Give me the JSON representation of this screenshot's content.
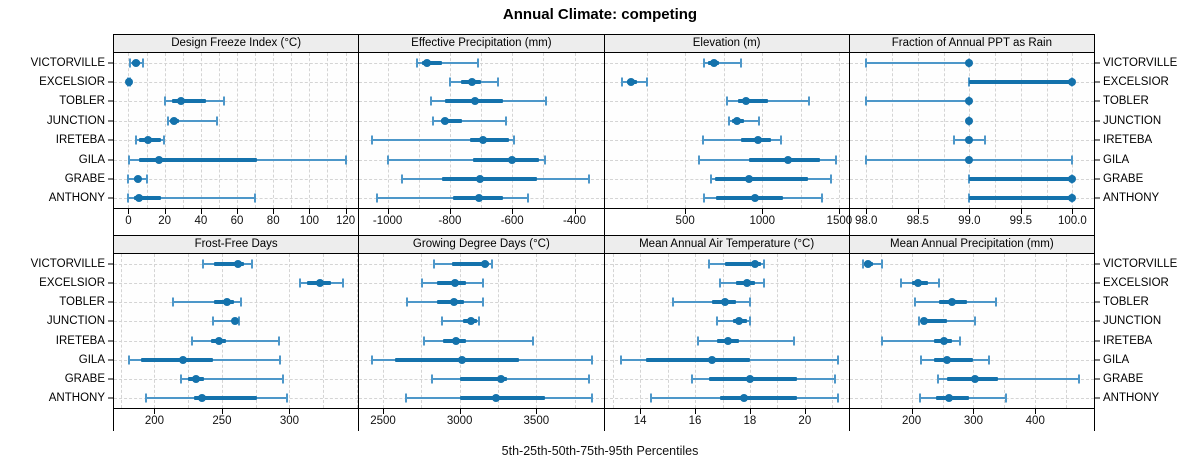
{
  "title": "Annual Climate: competing",
  "caption": "5th-25th-50th-75th-95th Percentiles",
  "sites": [
    "VICTORVILLE",
    "EXCELSIOR",
    "TOBLER",
    "JUNCTION",
    "IRETEBA",
    "GILA",
    "GRABE",
    "ANTHONY"
  ],
  "colors": {
    "median_dot": "#1472ac",
    "iqr_bar": "#1472ac",
    "whisker": "#4d97c9",
    "grid": "#d4d4d4",
    "strip_bg": "#ededed",
    "border": "#000000"
  },
  "percentile_levels": [
    5,
    25,
    50,
    75,
    95
  ],
  "chart_data": [
    {
      "type": "dotplot-percentiles",
      "title": "Design Freeze Index (°C)",
      "xlim": [
        -8,
        127
      ],
      "grid": [
        0,
        10,
        20,
        30,
        40,
        50,
        60,
        70,
        80,
        90,
        100,
        110,
        120
      ],
      "ticks": [
        {
          "v": 0,
          "label": "0"
        },
        {
          "v": 20,
          "label": "20"
        },
        {
          "v": 40,
          "label": "40"
        },
        {
          "v": 60,
          "label": "60"
        },
        {
          "v": 80,
          "label": "80"
        },
        {
          "v": 100,
          "label": "100"
        },
        {
          "v": 120,
          "label": "120"
        }
      ],
      "series": [
        {
          "name": "VICTORVILLE",
          "p": [
            1,
            2,
            4,
            6.5,
            8
          ]
        },
        {
          "name": "EXCELSIOR",
          "p": [
            0,
            0,
            0.3,
            0.6,
            1
          ]
        },
        {
          "name": "TOBLER",
          "p": [
            20,
            24,
            29,
            43,
            53
          ]
        },
        {
          "name": "JUNCTION",
          "p": [
            22,
            23,
            25,
            28,
            49
          ]
        },
        {
          "name": "IRETEBA",
          "p": [
            4,
            6,
            11,
            18,
            19.5
          ]
        },
        {
          "name": "GILA",
          "p": [
            0.5,
            6,
            17,
            71,
            120
          ]
        },
        {
          "name": "GRABE",
          "p": [
            0,
            3,
            5,
            7,
            10
          ]
        },
        {
          "name": "ANTHONY",
          "p": [
            0,
            3,
            6,
            18,
            70
          ]
        }
      ]
    },
    {
      "type": "dotplot-percentiles",
      "title": "Effective Precipitation (mm)",
      "xlim": [
        -1091,
        -307
      ],
      "grid": [
        -1000,
        -900,
        -800,
        -700,
        -600,
        -500,
        -400
      ],
      "ticks": [
        {
          "v": -1000,
          "label": "-1000"
        },
        {
          "v": -800,
          "label": "-800"
        },
        {
          "v": -600,
          "label": "-600"
        },
        {
          "v": -400,
          "label": "-400"
        }
      ],
      "series": [
        {
          "name": "VICTORVILLE",
          "p": [
            -905,
            -890,
            -875,
            -825,
            -710
          ]
        },
        {
          "name": "EXCELSIOR",
          "p": [
            -800,
            -765,
            -730,
            -700,
            -645
          ]
        },
        {
          "name": "TOBLER",
          "p": [
            -860,
            -815,
            -720,
            -630,
            -490
          ]
        },
        {
          "name": "JUNCTION",
          "p": [
            -855,
            -830,
            -815,
            -760,
            -620
          ]
        },
        {
          "name": "IRETEBA",
          "p": [
            -1050,
            -735,
            -695,
            -610,
            -595
          ]
        },
        {
          "name": "GILA",
          "p": [
            -1000,
            -725,
            -600,
            -515,
            -495
          ]
        },
        {
          "name": "GRABE",
          "p": [
            -955,
            -825,
            -705,
            -520,
            -355
          ]
        },
        {
          "name": "ANTHONY",
          "p": [
            -1035,
            -790,
            -707,
            -630,
            -550
          ]
        }
      ]
    },
    {
      "type": "dotplot-percentiles",
      "title": "Elevation (m)",
      "xlim": [
        -23,
        1561
      ],
      "grid": [
        250,
        500,
        750,
        1000,
        1250,
        1500
      ],
      "ticks": [
        {
          "v": 500,
          "label": "500"
        },
        {
          "v": 1000,
          "label": "1000"
        },
        {
          "v": 1500,
          "label": "1500"
        }
      ],
      "series": [
        {
          "name": "VICTORVILLE",
          "p": [
            625,
            650,
            685,
            720,
            860
          ]
        },
        {
          "name": "EXCELSIOR",
          "p": [
            90,
            120,
            150,
            185,
            250
          ]
        },
        {
          "name": "TOBLER",
          "p": [
            770,
            840,
            897,
            1040,
            1300
          ]
        },
        {
          "name": "JUNCTION",
          "p": [
            785,
            807,
            839,
            880,
            980
          ]
        },
        {
          "name": "IRETEBA",
          "p": [
            615,
            860,
            970,
            1055,
            1120
          ]
        },
        {
          "name": "GILA",
          "p": [
            590,
            915,
            1165,
            1375,
            1480
          ]
        },
        {
          "name": "GRABE",
          "p": [
            670,
            695,
            915,
            1300,
            1445
          ]
        },
        {
          "name": "ANTHONY",
          "p": [
            625,
            700,
            950,
            1135,
            1385
          ]
        }
      ]
    },
    {
      "type": "dotplot-percentiles",
      "title": "Fraction of Annual PPT as Rain",
      "xlim": [
        97.84,
        100.21
      ],
      "grid": [
        98,
        98.25,
        98.5,
        98.75,
        99,
        99.25,
        99.5,
        99.75,
        100
      ],
      "ticks": [
        {
          "v": 98.0,
          "label": "98.0"
        },
        {
          "v": 98.5,
          "label": "98.5"
        },
        {
          "v": 99.0,
          "label": "99.0"
        },
        {
          "v": 99.5,
          "label": "99.5"
        },
        {
          "v": 100.0,
          "label": "100.0"
        }
      ],
      "series": [
        {
          "name": "VICTORVILLE",
          "p": [
            98,
            99,
            99,
            99,
            99
          ]
        },
        {
          "name": "EXCELSIOR",
          "p": [
            99,
            99,
            100,
            100,
            100
          ]
        },
        {
          "name": "TOBLER",
          "p": [
            98,
            99,
            99,
            99,
            99
          ]
        },
        {
          "name": "JUNCTION",
          "p": [
            99,
            99,
            99,
            99,
            99
          ]
        },
        {
          "name": "IRETEBA",
          "p": [
            98.85,
            99,
            99,
            99,
            99.15
          ]
        },
        {
          "name": "GILA",
          "p": [
            98,
            99,
            99,
            99,
            100
          ]
        },
        {
          "name": "GRABE",
          "p": [
            99,
            99,
            100,
            100,
            100
          ]
        },
        {
          "name": "ANTHONY",
          "p": [
            99,
            99,
            100,
            100,
            100
          ]
        }
      ]
    },
    {
      "type": "dotplot-percentiles",
      "title": "Frost-Free Days",
      "xlim": [
        170,
        351
      ],
      "grid": [
        175,
        200,
        225,
        250,
        275,
        300,
        325,
        350
      ],
      "ticks": [
        {
          "v": 200,
          "label": "200"
        },
        {
          "v": 250,
          "label": "250"
        },
        {
          "v": 300,
          "label": "300"
        }
      ],
      "series": [
        {
          "name": "VICTORVILLE",
          "p": [
            236,
            244,
            262,
            266,
            272
          ]
        },
        {
          "name": "EXCELSIOR",
          "p": [
            308,
            313,
            323,
            331,
            340
          ]
        },
        {
          "name": "TOBLER",
          "p": [
            214,
            244,
            254,
            259,
            264
          ]
        },
        {
          "name": "JUNCTION",
          "p": [
            243,
            258,
            260,
            262,
            263
          ]
        },
        {
          "name": "IRETEBA",
          "p": [
            228,
            242,
            248,
            253,
            292
          ]
        },
        {
          "name": "GILA",
          "p": [
            181,
            190,
            221,
            243,
            293
          ]
        },
        {
          "name": "GRABE",
          "p": [
            220,
            225,
            231,
            237,
            295
          ]
        },
        {
          "name": "ANTHONY",
          "p": [
            194,
            229,
            235,
            276,
            298
          ]
        }
      ]
    },
    {
      "type": "dotplot-percentiles",
      "title": "Growing Degree Days (°C)",
      "xlim": [
        2345,
        3938
      ],
      "grid": [
        2500,
        2750,
        3000,
        3250,
        3500,
        3750
      ],
      "ticks": [
        {
          "v": 2500,
          "label": "2500"
        },
        {
          "v": 3000,
          "label": "3000"
        },
        {
          "v": 3500,
          "label": "3500"
        }
      ],
      "series": [
        {
          "name": "VICTORVILLE",
          "p": [
            2830,
            2950,
            3165,
            3190,
            3210
          ]
        },
        {
          "name": "EXCELSIOR",
          "p": [
            2755,
            2855,
            2970,
            3040,
            3150
          ]
        },
        {
          "name": "TOBLER",
          "p": [
            2655,
            2855,
            2960,
            3025,
            3150
          ]
        },
        {
          "name": "JUNCTION",
          "p": [
            2885,
            3020,
            3075,
            3110,
            3125
          ]
        },
        {
          "name": "IRETEBA",
          "p": [
            2770,
            2890,
            2975,
            3040,
            3475
          ]
        },
        {
          "name": "GILA",
          "p": [
            2430,
            2575,
            3015,
            3385,
            3860
          ]
        },
        {
          "name": "GRABE",
          "p": [
            2820,
            3000,
            3270,
            3310,
            3845
          ]
        },
        {
          "name": "ANTHONY",
          "p": [
            2650,
            3000,
            3240,
            3555,
            3860
          ]
        }
      ]
    },
    {
      "type": "dotplot-percentiles",
      "title": "Mean Annual Air Temperature (°C)",
      "xlim": [
        12.7,
        21.6
      ],
      "grid": [
        13,
        14,
        15,
        16,
        17,
        18,
        19,
        20,
        21
      ],
      "ticks": [
        {
          "v": 14,
          "label": "14"
        },
        {
          "v": 16,
          "label": "16"
        },
        {
          "v": 18,
          "label": "18"
        },
        {
          "v": 20,
          "label": "20"
        }
      ],
      "series": [
        {
          "name": "VICTORVILLE",
          "p": [
            16.5,
            17.1,
            18.2,
            18.4,
            18.5
          ]
        },
        {
          "name": "EXCELSIOR",
          "p": [
            16.9,
            17.5,
            17.9,
            18.2,
            18.5
          ]
        },
        {
          "name": "TOBLER",
          "p": [
            15.2,
            16.6,
            17.1,
            17.5,
            18.0
          ]
        },
        {
          "name": "JUNCTION",
          "p": [
            16.8,
            17.4,
            17.6,
            17.9,
            18.0
          ]
        },
        {
          "name": "IRETEBA",
          "p": [
            16.1,
            16.8,
            17.2,
            17.6,
            19.6
          ]
        },
        {
          "name": "GILA",
          "p": [
            13.3,
            14.2,
            16.6,
            18.0,
            21.2
          ]
        },
        {
          "name": "GRABE",
          "p": [
            15.9,
            16.5,
            18.0,
            19.7,
            21.1
          ]
        },
        {
          "name": "ANTHONY",
          "p": [
            14.4,
            16.9,
            17.8,
            19.7,
            21.2
          ]
        }
      ]
    },
    {
      "type": "dotplot-percentiles",
      "title": "Mean Annual Precipitation (mm)",
      "xlim": [
        100,
        495
      ],
      "grid": [
        150,
        200,
        250,
        300,
        350,
        400,
        450
      ],
      "ticks": [
        {
          "v": 200,
          "label": "200"
        },
        {
          "v": 300,
          "label": "300"
        },
        {
          "v": 400,
          "label": "400"
        }
      ],
      "series": [
        {
          "name": "VICTORVILLE",
          "p": [
            122,
            123,
            129,
            138,
            152
          ]
        },
        {
          "name": "EXCELSIOR",
          "p": [
            183,
            200,
            210,
            227,
            244
          ]
        },
        {
          "name": "TOBLER",
          "p": [
            206,
            245,
            265,
            290,
            337
          ]
        },
        {
          "name": "JUNCTION",
          "p": [
            212,
            218,
            220,
            257,
            303
          ]
        },
        {
          "name": "IRETEBA",
          "p": [
            152,
            236,
            252,
            266,
            278
          ]
        },
        {
          "name": "GILA",
          "p": [
            216,
            237,
            257,
            300,
            326
          ]
        },
        {
          "name": "GRABE",
          "p": [
            243,
            258,
            303,
            340,
            470
          ]
        },
        {
          "name": "ANTHONY",
          "p": [
            214,
            240,
            260,
            293,
            352
          ]
        }
      ]
    }
  ]
}
